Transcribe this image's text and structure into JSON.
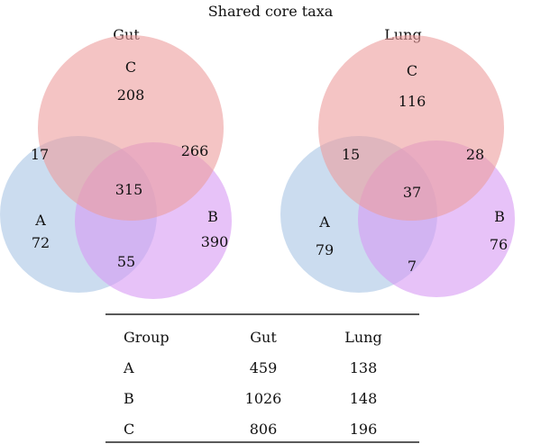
{
  "title": "Shared core taxa",
  "colors": {
    "A": "#a9c4e4",
    "B": "#d79af4",
    "C": "#ec9d9d"
  },
  "venns": [
    {
      "name": "Gut",
      "set_labels": {
        "A": "A",
        "B": "B",
        "C": "C"
      },
      "regions": {
        "A_only": "72",
        "B_only": "390",
        "C_only": "208",
        "AC": "17",
        "BC": "266",
        "AB": "55",
        "ABC": "315"
      }
    },
    {
      "name": "Lung",
      "set_labels": {
        "A": "A",
        "B": "B",
        "C": "C"
      },
      "regions": {
        "A_only": "79",
        "B_only": "76",
        "C_only": "116",
        "AC": "15",
        "BC": "28",
        "AB": "7",
        "ABC": "37"
      }
    }
  ],
  "table": {
    "headers": [
      "Group",
      "Gut",
      "Lung"
    ],
    "rows": [
      [
        "A",
        "459",
        "138"
      ],
      [
        "B",
        "1026",
        "148"
      ],
      [
        "C",
        "806",
        "196"
      ]
    ]
  }
}
